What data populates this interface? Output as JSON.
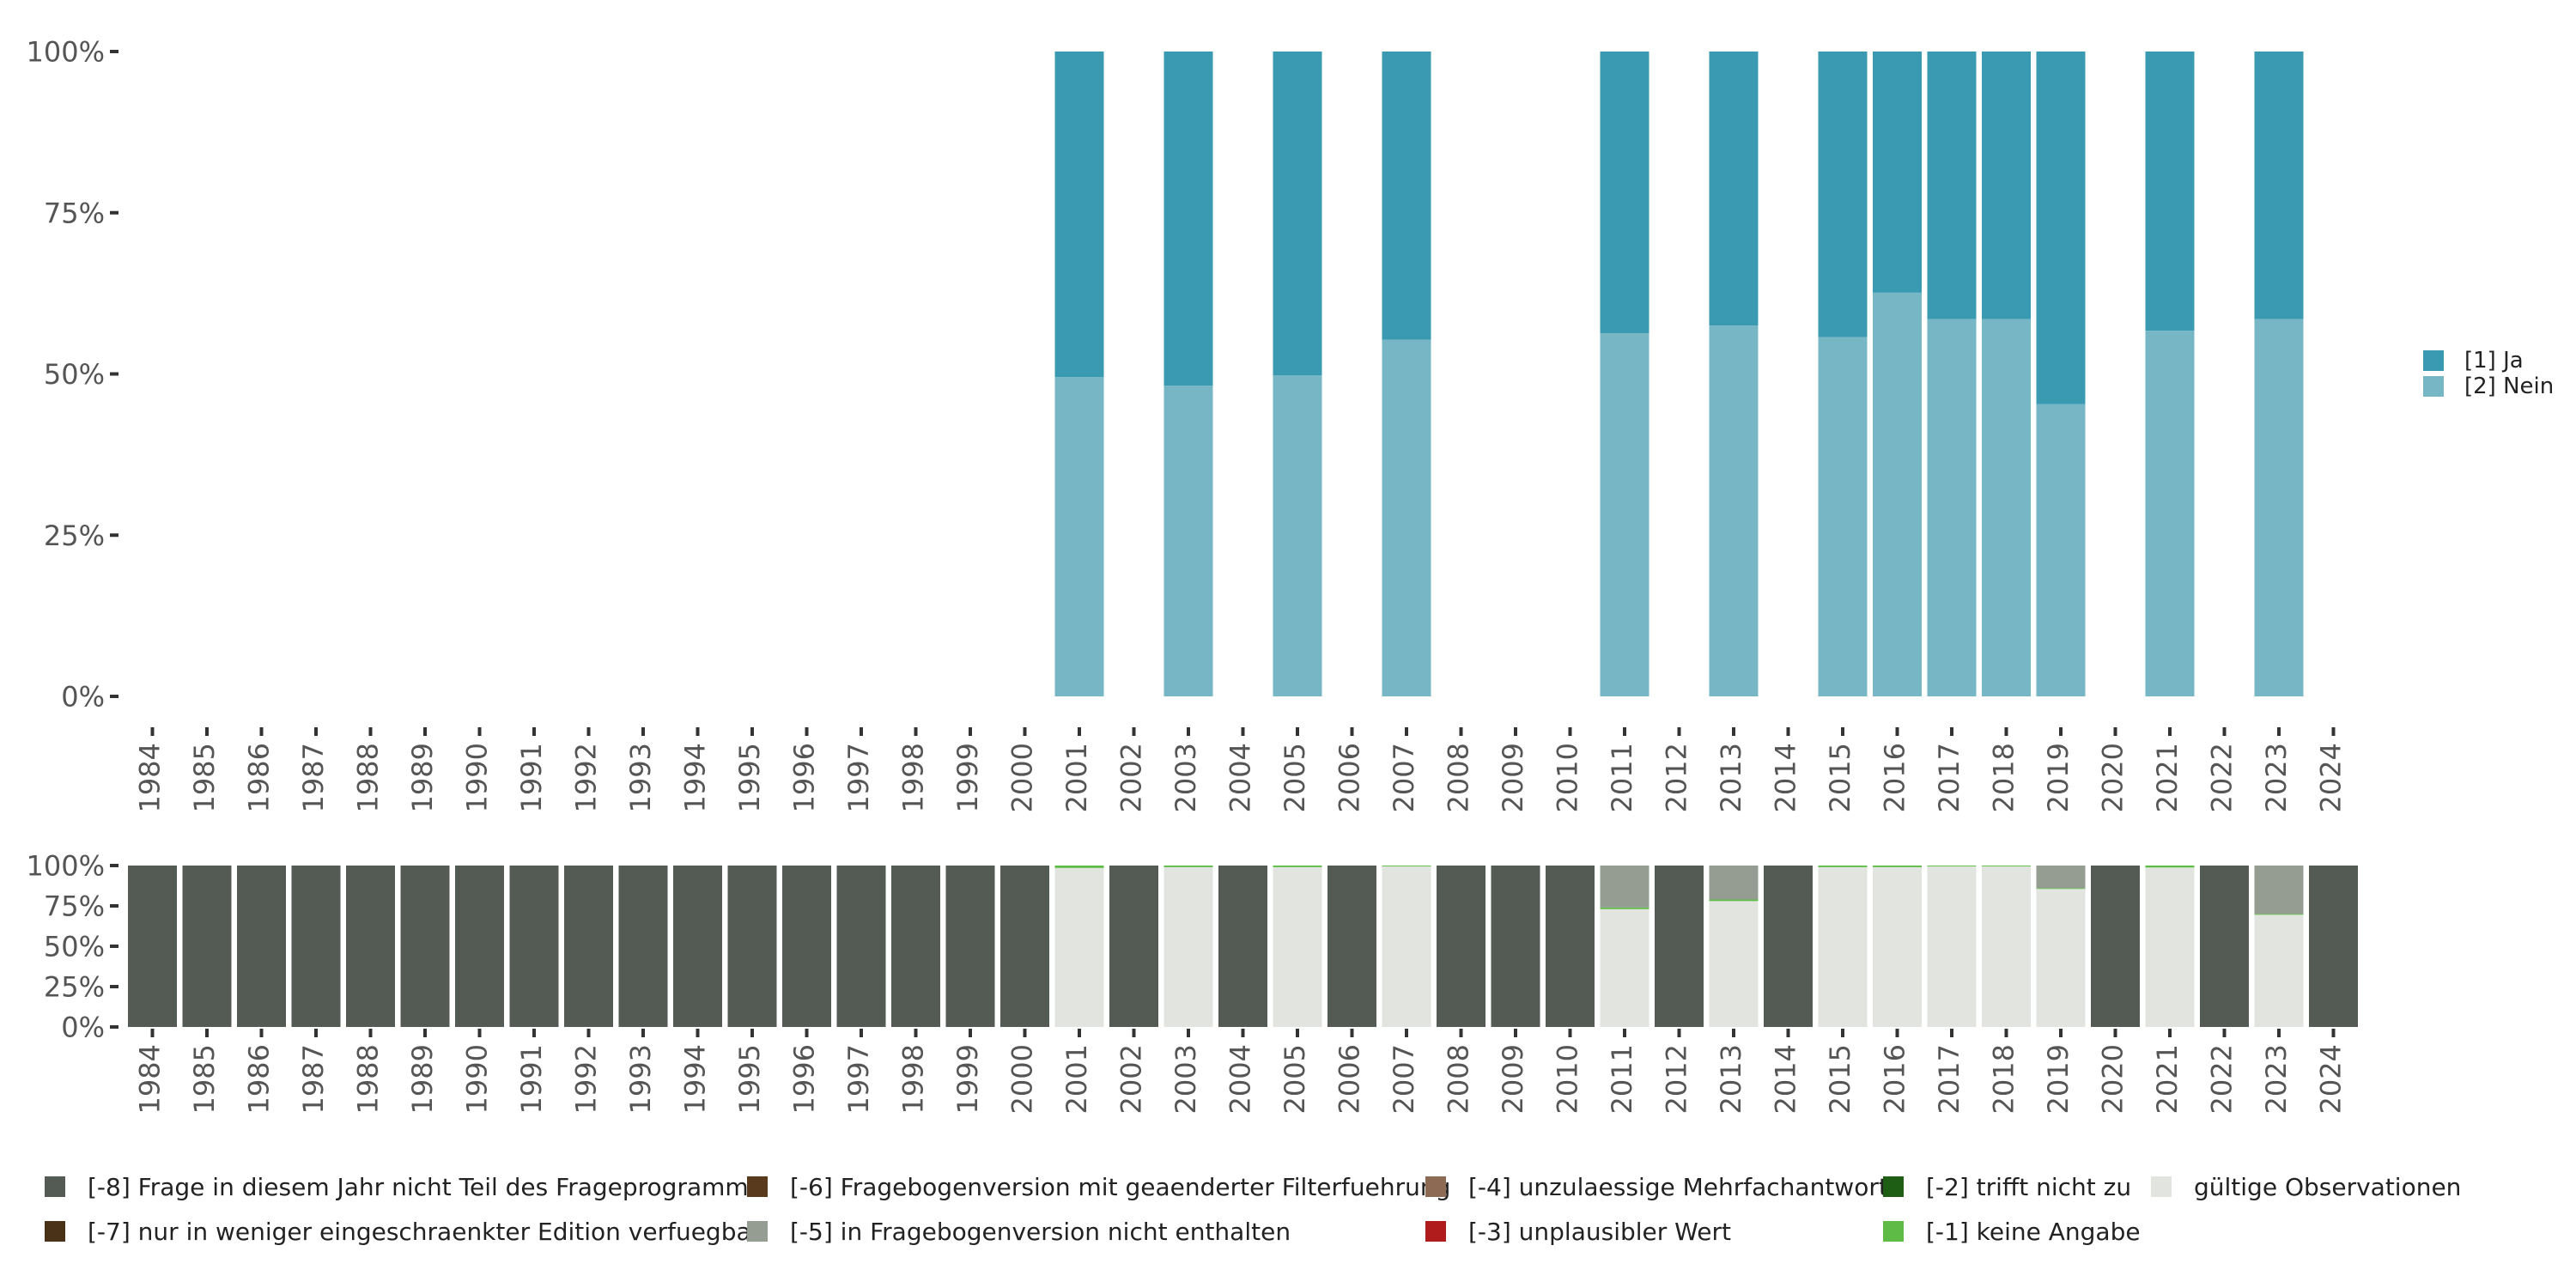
{
  "chart_data": [
    {
      "type": "bar",
      "stacked": true,
      "title": "",
      "xlabel": "",
      "ylabel": "",
      "ylim": [
        0,
        100
      ],
      "yticks": [
        "0%",
        "25%",
        "50%",
        "75%",
        "100%"
      ],
      "categories": [
        "1984",
        "1985",
        "1986",
        "1987",
        "1988",
        "1989",
        "1990",
        "1991",
        "1992",
        "1993",
        "1994",
        "1995",
        "1996",
        "1997",
        "1998",
        "1999",
        "2000",
        "2001",
        "2002",
        "2003",
        "2004",
        "2005",
        "2006",
        "2007",
        "2008",
        "2009",
        "2010",
        "2011",
        "2012",
        "2013",
        "2014",
        "2015",
        "2016",
        "2017",
        "2018",
        "2019",
        "2020",
        "2021",
        "2022",
        "2023",
        "2024"
      ],
      "series": [
        {
          "name": "[2] Nein",
          "color": "#77b7c5",
          "values": [
            null,
            null,
            null,
            null,
            null,
            null,
            null,
            null,
            null,
            null,
            null,
            null,
            null,
            null,
            null,
            null,
            null,
            49.5,
            null,
            48.2,
            null,
            49.8,
            null,
            55.3,
            null,
            null,
            null,
            56.3,
            null,
            57.5,
            null,
            55.7,
            62.6,
            58.5,
            58.5,
            45.3,
            null,
            56.7,
            null,
            58.5,
            null
          ]
        },
        {
          "name": "[1] Ja",
          "color": "#3a9ab2",
          "values": [
            null,
            null,
            null,
            null,
            null,
            null,
            null,
            null,
            null,
            null,
            null,
            null,
            null,
            null,
            null,
            null,
            null,
            50.5,
            null,
            51.8,
            null,
            50.2,
            null,
            44.7,
            null,
            null,
            null,
            43.7,
            null,
            42.5,
            null,
            44.3,
            37.4,
            41.5,
            41.5,
            54.7,
            null,
            43.3,
            null,
            41.5,
            null
          ]
        }
      ],
      "legend": [
        "[1] Ja",
        "[2] Nein"
      ]
    },
    {
      "type": "bar",
      "stacked": true,
      "title": "",
      "ylim": [
        0,
        100
      ],
      "yticks": [
        "0%",
        "25%",
        "50%",
        "75%",
        "100%"
      ],
      "categories": [
        "1984",
        "1985",
        "1986",
        "1987",
        "1988",
        "1989",
        "1990",
        "1991",
        "1992",
        "1993",
        "1994",
        "1995",
        "1996",
        "1997",
        "1998",
        "1999",
        "2000",
        "2001",
        "2002",
        "2003",
        "2004",
        "2005",
        "2006",
        "2007",
        "2008",
        "2009",
        "2010",
        "2011",
        "2012",
        "2013",
        "2014",
        "2015",
        "2016",
        "2017",
        "2018",
        "2019",
        "2020",
        "2021",
        "2022",
        "2023",
        "2024"
      ],
      "series": [
        {
          "name": "gültige Observationen",
          "color": "#e1e4df",
          "values": [
            0,
            0,
            0,
            0,
            0,
            0,
            0,
            0,
            0,
            0,
            0,
            0,
            0,
            0,
            0,
            0,
            0,
            98.5,
            0,
            99,
            0,
            99,
            0,
            99.5,
            0,
            0,
            0,
            73,
            0,
            78,
            0,
            99,
            99,
            99.5,
            99.5,
            85.5,
            0,
            98.8,
            0,
            69.5,
            0
          ]
        },
        {
          "name": "[-1] keine Angabe",
          "color": "#5dbb46",
          "values": [
            0,
            0,
            0,
            0,
            0,
            0,
            0,
            0,
            0,
            0,
            0,
            0,
            0,
            0,
            0,
            0,
            0,
            1.5,
            0,
            1,
            0,
            1,
            0,
            0.5,
            0,
            0,
            0,
            1,
            0,
            1,
            0,
            1,
            1,
            0.5,
            0.5,
            0.5,
            0,
            1.2,
            0,
            0.5,
            0
          ]
        },
        {
          "name": "[-5] in Fragebogenversion nicht enthalten",
          "color": "#959c92",
          "values": [
            0,
            0,
            0,
            0,
            0,
            0,
            0,
            0,
            0,
            0,
            0,
            0,
            0,
            0,
            0,
            0,
            0,
            0,
            0,
            0,
            0,
            0,
            0,
            0,
            0,
            0,
            0,
            26,
            0,
            21,
            0,
            0,
            0,
            0,
            0,
            14,
            0,
            0,
            0,
            30,
            0
          ]
        },
        {
          "name": "[-8] Frage in diesem Jahr nicht Teil des Frageprogramms",
          "color": "#545b55",
          "values": [
            100,
            100,
            100,
            100,
            100,
            100,
            100,
            100,
            100,
            100,
            100,
            100,
            100,
            100,
            100,
            100,
            100,
            0,
            100,
            0,
            100,
            0,
            100,
            0,
            100,
            100,
            100,
            0,
            100,
            0,
            100,
            0,
            0,
            0,
            0,
            0,
            100,
            0,
            100,
            0,
            100
          ]
        }
      ]
    }
  ],
  "legend_bottom": [
    {
      "label": "[-8] Frage in diesem Jahr nicht Teil des Frageprogramms",
      "color": "#545b55"
    },
    {
      "label": "[-7] nur in weniger eingeschraenkter Edition verfuegbar",
      "color": "#4a3219"
    },
    {
      "label": "[-6] Fragebogenversion mit geaenderter Filterfuehrung",
      "color": "#5a3a1c"
    },
    {
      "label": "[-5] in Fragebogenversion nicht enthalten",
      "color": "#959c92"
    },
    {
      "label": "[-4] unzulaessige Mehrfachantwort",
      "color": "#8c6a53"
    },
    {
      "label": "[-3] unplausibler Wert",
      "color": "#b01c1c"
    },
    {
      "label": "[-2] trifft nicht zu",
      "color": "#1e5e14"
    },
    {
      "label": "[-1] keine Angabe",
      "color": "#5dbb46"
    },
    {
      "label": "gültige Observationen",
      "color": "#e1e4df"
    }
  ]
}
